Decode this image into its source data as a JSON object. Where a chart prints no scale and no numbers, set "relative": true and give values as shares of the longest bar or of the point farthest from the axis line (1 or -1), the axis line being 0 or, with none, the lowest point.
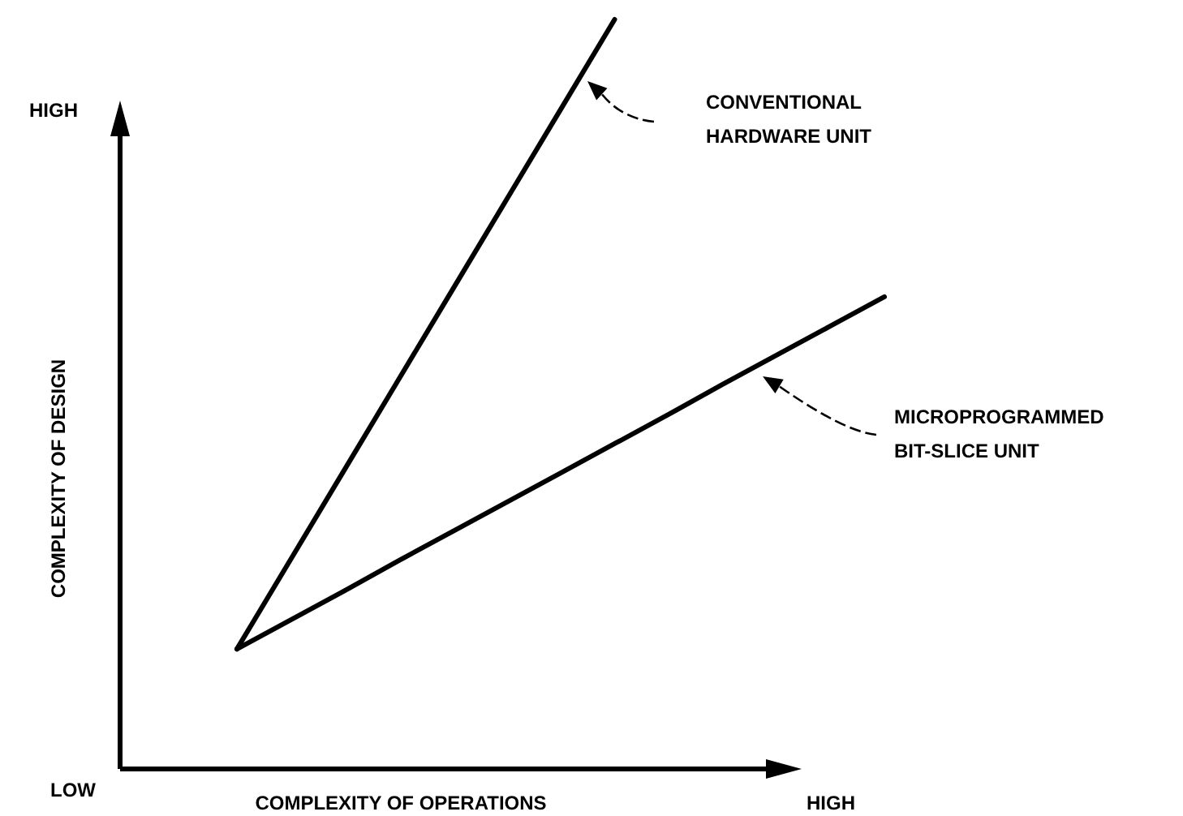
{
  "chart_data": {
    "type": "line",
    "relative": true,
    "xlabel": "COMPLEXITY OF OPERATIONS",
    "annotations": [
      "HIGH",
      "LOW",
      "HIGH",
      "COMPLEXITY OF DESIGN"
    ],
    "categories": [
      null,
      null,
      null,
      null,
      null,
      null,
      null,
      null,
      null,
      null,
      null,
      null,
      null
    ],
    "series": [
      {
        "name": "CONVENTIONAL\nHARDWARE UNIT",
        "color": "#000000",
        "values": [
          0.16,
          0.28,
          0.4,
          0.52,
          0.64,
          0.76,
          0.88,
          1,
          null,
          null,
          null,
          null,
          null
        ]
      },
      {
        "name": "MICROPROGRAMMED\nBIT-SLICE UNIT",
        "color": "#000000",
        "values": [
          0.16,
          0.199,
          0.238,
          0.278,
          0.317,
          0.356,
          0.395,
          0.434,
          0.473,
          0.513,
          0.552,
          0.591,
          0.63
        ]
      }
    ]
  }
}
